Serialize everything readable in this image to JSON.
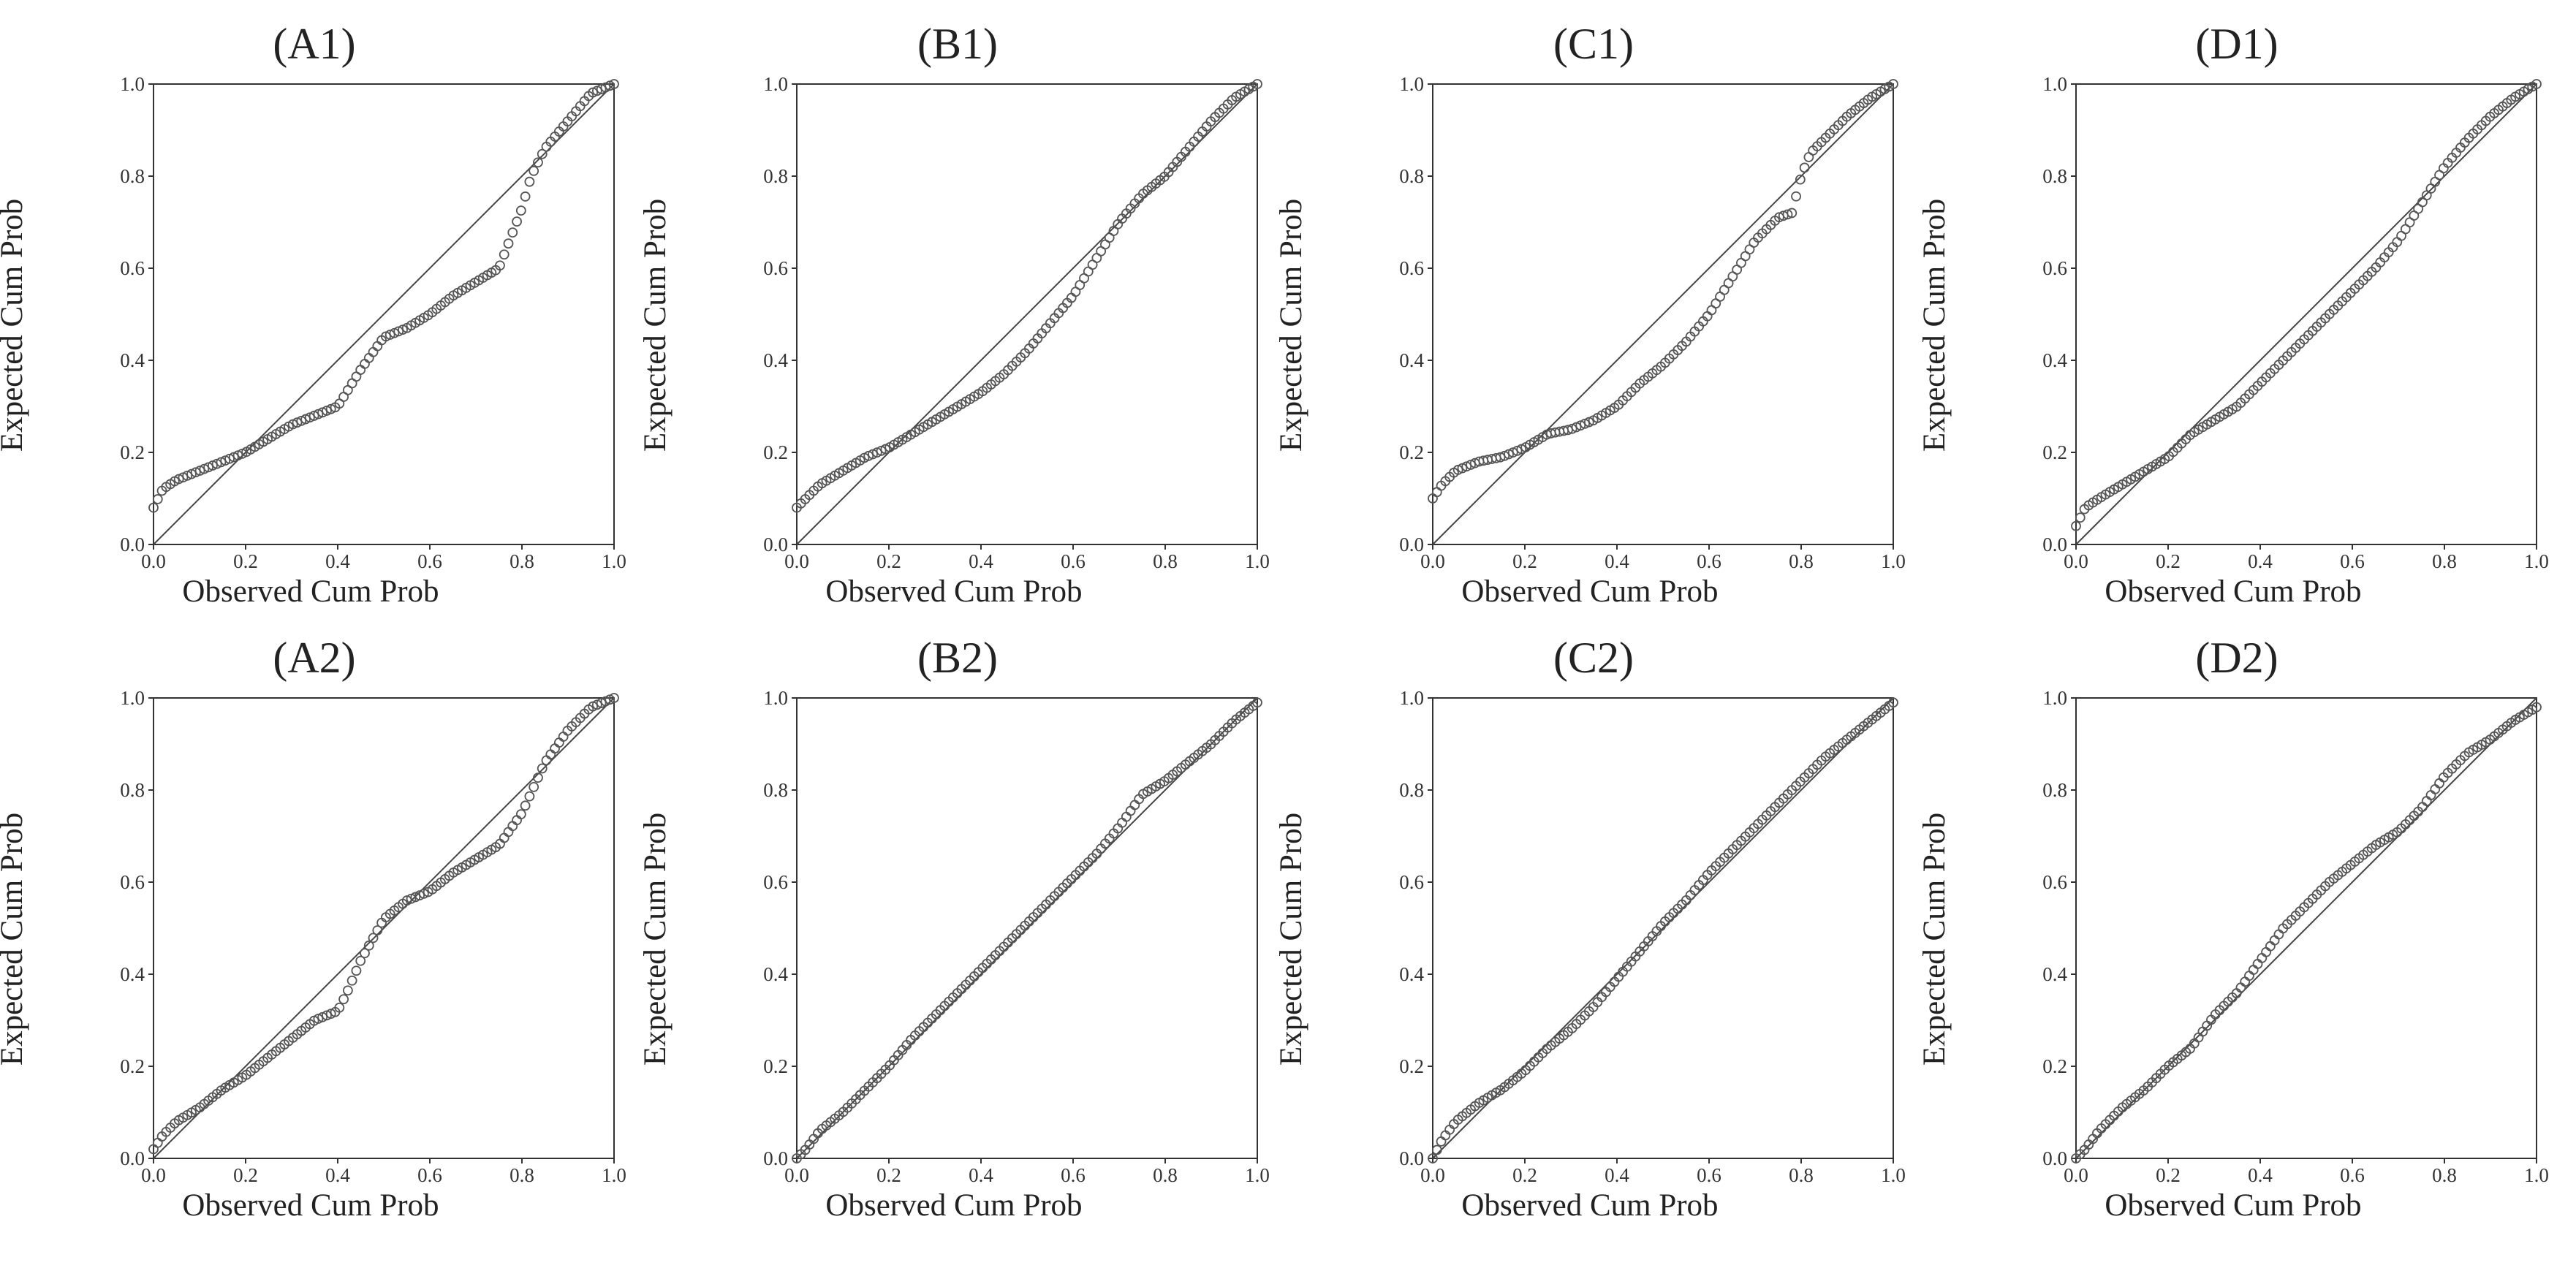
{
  "chart_data": [
    {
      "id": "A1",
      "type": "scatter",
      "title": "(A1)",
      "xlabel": "Observed Cum Prob",
      "ylabel": "Expected Cum Prob",
      "xlim": [
        0,
        1
      ],
      "ylim": [
        0,
        1
      ],
      "xticks": [
        "0.0",
        "0.2",
        "0.4",
        "0.6",
        "0.8",
        "1.0"
      ],
      "yticks": [
        "0.0",
        "0.2",
        "0.4",
        "0.6",
        "0.8",
        "1.0"
      ],
      "reference_line": [
        [
          0,
          0
        ],
        [
          1,
          1
        ]
      ],
      "x": [
        0.0,
        0.02,
        0.05,
        0.1,
        0.15,
        0.2,
        0.25,
        0.3,
        0.35,
        0.4,
        0.45,
        0.5,
        0.55,
        0.6,
        0.65,
        0.7,
        0.75,
        0.8,
        0.82,
        0.85,
        0.9,
        0.95,
        1.0
      ],
      "y": [
        0.08,
        0.12,
        0.14,
        0.16,
        0.18,
        0.2,
        0.23,
        0.26,
        0.28,
        0.3,
        0.38,
        0.45,
        0.47,
        0.5,
        0.54,
        0.57,
        0.6,
        0.73,
        0.8,
        0.86,
        0.92,
        0.98,
        1.0
      ]
    },
    {
      "id": "B1",
      "type": "scatter",
      "title": "(B1)",
      "xlabel": "Observed Cum Prob",
      "ylabel": "Expected Cum Prob",
      "xlim": [
        0,
        1
      ],
      "ylim": [
        0,
        1
      ],
      "xticks": [
        "0.0",
        "0.2",
        "0.4",
        "0.6",
        "0.8",
        "1.0"
      ],
      "yticks": [
        "0.0",
        "0.2",
        "0.4",
        "0.6",
        "0.8",
        "1.0"
      ],
      "reference_line": [
        [
          0,
          0
        ],
        [
          1,
          1
        ]
      ],
      "x": [
        0.0,
        0.02,
        0.05,
        0.1,
        0.15,
        0.2,
        0.25,
        0.3,
        0.35,
        0.4,
        0.45,
        0.5,
        0.55,
        0.6,
        0.65,
        0.7,
        0.75,
        0.8,
        0.85,
        0.9,
        0.95,
        1.0
      ],
      "y": [
        0.08,
        0.1,
        0.13,
        0.16,
        0.19,
        0.21,
        0.24,
        0.27,
        0.3,
        0.33,
        0.37,
        0.42,
        0.48,
        0.54,
        0.62,
        0.7,
        0.76,
        0.8,
        0.86,
        0.92,
        0.97,
        1.0
      ]
    },
    {
      "id": "C1",
      "type": "scatter",
      "title": "(C1)",
      "xlabel": "Observed Cum Prob",
      "ylabel": "Expected Cum Prob",
      "xlim": [
        0,
        1
      ],
      "ylim": [
        0,
        1
      ],
      "xticks": [
        "0.0",
        "0.2",
        "0.4",
        "0.6",
        "0.8",
        "1.0"
      ],
      "yticks": [
        "0.0",
        "0.2",
        "0.4",
        "0.6",
        "0.8",
        "1.0"
      ],
      "reference_line": [
        [
          0,
          0
        ],
        [
          1,
          1
        ]
      ],
      "x": [
        0.0,
        0.02,
        0.05,
        0.1,
        0.15,
        0.2,
        0.25,
        0.3,
        0.35,
        0.4,
        0.45,
        0.5,
        0.55,
        0.6,
        0.65,
        0.7,
        0.75,
        0.78,
        0.8,
        0.82,
        0.85,
        0.9,
        0.95,
        1.0
      ],
      "y": [
        0.1,
        0.13,
        0.16,
        0.18,
        0.19,
        0.21,
        0.24,
        0.25,
        0.27,
        0.3,
        0.35,
        0.39,
        0.44,
        0.5,
        0.58,
        0.66,
        0.71,
        0.72,
        0.8,
        0.85,
        0.88,
        0.93,
        0.97,
        1.0
      ]
    },
    {
      "id": "D1",
      "type": "scatter",
      "title": "(D1)",
      "xlabel": "Observed Cum Prob",
      "ylabel": "Expected Cum Prob",
      "xlim": [
        0,
        1
      ],
      "ylim": [
        0,
        1
      ],
      "xticks": [
        "0.0",
        "0.2",
        "0.4",
        "0.6",
        "0.8",
        "1.0"
      ],
      "yticks": [
        "0.0",
        "0.2",
        "0.4",
        "0.6",
        "0.8",
        "1.0"
      ],
      "reference_line": [
        [
          0,
          0
        ],
        [
          1,
          1
        ]
      ],
      "x": [
        0.0,
        0.02,
        0.05,
        0.1,
        0.15,
        0.2,
        0.25,
        0.3,
        0.35,
        0.4,
        0.45,
        0.5,
        0.55,
        0.6,
        0.65,
        0.7,
        0.75,
        0.8,
        0.85,
        0.9,
        0.95,
        1.0
      ],
      "y": [
        0.04,
        0.08,
        0.1,
        0.13,
        0.16,
        0.19,
        0.24,
        0.27,
        0.3,
        0.35,
        0.4,
        0.45,
        0.5,
        0.55,
        0.6,
        0.66,
        0.74,
        0.82,
        0.88,
        0.93,
        0.97,
        1.0
      ]
    },
    {
      "id": "A2",
      "type": "scatter",
      "title": "(A2)",
      "xlabel": "Observed Cum Prob",
      "ylabel": "Expected Cum Prob",
      "xlim": [
        0,
        1
      ],
      "ylim": [
        0,
        1
      ],
      "xticks": [
        "0.0",
        "0.2",
        "0.4",
        "0.6",
        "0.8",
        "1.0"
      ],
      "yticks": [
        "0.0",
        "0.2",
        "0.4",
        "0.6",
        "0.8",
        "1.0"
      ],
      "reference_line": [
        [
          0,
          0
        ],
        [
          1,
          1
        ]
      ],
      "x": [
        0.0,
        0.02,
        0.05,
        0.1,
        0.15,
        0.2,
        0.25,
        0.3,
        0.35,
        0.4,
        0.42,
        0.45,
        0.5,
        0.55,
        0.6,
        0.65,
        0.7,
        0.75,
        0.8,
        0.85,
        0.9,
        0.95,
        1.0
      ],
      "y": [
        0.02,
        0.05,
        0.08,
        0.11,
        0.15,
        0.18,
        0.22,
        0.26,
        0.3,
        0.32,
        0.36,
        0.43,
        0.52,
        0.56,
        0.58,
        0.62,
        0.65,
        0.68,
        0.75,
        0.86,
        0.93,
        0.98,
        1.0
      ]
    },
    {
      "id": "B2",
      "type": "scatter",
      "title": "(B2)",
      "xlabel": "Observed Cum Prob",
      "ylabel": "Expected Cum Prob",
      "xlim": [
        0,
        1
      ],
      "ylim": [
        0,
        1
      ],
      "xticks": [
        "0.0",
        "0.2",
        "0.4",
        "0.6",
        "0.8",
        "1.0"
      ],
      "yticks": [
        "0.0",
        "0.2",
        "0.4",
        "0.6",
        "0.8",
        "1.0"
      ],
      "reference_line": [
        [
          0,
          0
        ],
        [
          1,
          1
        ]
      ],
      "x": [
        0.0,
        0.02,
        0.05,
        0.1,
        0.15,
        0.2,
        0.25,
        0.3,
        0.35,
        0.4,
        0.45,
        0.5,
        0.55,
        0.6,
        0.65,
        0.7,
        0.75,
        0.8,
        0.85,
        0.9,
        0.95,
        1.0
      ],
      "y": [
        0.0,
        0.02,
        0.06,
        0.1,
        0.15,
        0.2,
        0.26,
        0.31,
        0.36,
        0.41,
        0.46,
        0.51,
        0.56,
        0.61,
        0.66,
        0.72,
        0.79,
        0.82,
        0.86,
        0.9,
        0.95,
        0.99
      ]
    },
    {
      "id": "C2",
      "type": "scatter",
      "title": "(C2)",
      "xlabel": "Observed Cum Prob",
      "ylabel": "Expected Cum Prob",
      "xlim": [
        0,
        1
      ],
      "ylim": [
        0,
        1
      ],
      "xticks": [
        "0.0",
        "0.2",
        "0.4",
        "0.6",
        "0.8",
        "1.0"
      ],
      "yticks": [
        "0.0",
        "0.2",
        "0.4",
        "0.6",
        "0.8",
        "1.0"
      ],
      "reference_line": [
        [
          0,
          0
        ],
        [
          1,
          1
        ]
      ],
      "x": [
        0.0,
        0.02,
        0.05,
        0.1,
        0.15,
        0.2,
        0.25,
        0.3,
        0.35,
        0.4,
        0.45,
        0.5,
        0.55,
        0.6,
        0.65,
        0.7,
        0.75,
        0.8,
        0.85,
        0.9,
        0.95,
        1.0
      ],
      "y": [
        0.0,
        0.04,
        0.08,
        0.12,
        0.15,
        0.19,
        0.24,
        0.28,
        0.33,
        0.39,
        0.45,
        0.51,
        0.56,
        0.62,
        0.67,
        0.72,
        0.77,
        0.82,
        0.87,
        0.91,
        0.95,
        0.99
      ]
    },
    {
      "id": "D2",
      "type": "scatter",
      "title": "(D2)",
      "xlabel": "Observed Cum Prob",
      "ylabel": "Expected Cum Prob",
      "xlim": [
        0,
        1
      ],
      "ylim": [
        0,
        1
      ],
      "xticks": [
        "0.0",
        "0.2",
        "0.4",
        "0.6",
        "0.8",
        "1.0"
      ],
      "yticks": [
        "0.0",
        "0.2",
        "0.4",
        "0.6",
        "0.8",
        "1.0"
      ],
      "reference_line": [
        [
          0,
          0
        ],
        [
          1,
          1
        ]
      ],
      "x": [
        0.0,
        0.02,
        0.05,
        0.1,
        0.15,
        0.2,
        0.25,
        0.3,
        0.35,
        0.4,
        0.45,
        0.5,
        0.55,
        0.6,
        0.65,
        0.7,
        0.75,
        0.8,
        0.85,
        0.9,
        0.95,
        1.0
      ],
      "y": [
        0.0,
        0.02,
        0.06,
        0.11,
        0.15,
        0.2,
        0.24,
        0.31,
        0.36,
        0.43,
        0.5,
        0.55,
        0.6,
        0.64,
        0.68,
        0.71,
        0.76,
        0.83,
        0.88,
        0.91,
        0.95,
        0.98
      ]
    }
  ]
}
